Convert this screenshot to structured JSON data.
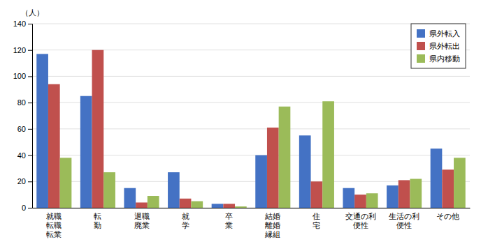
{
  "chart_data": {
    "type": "bar",
    "ylabel": "（人）",
    "categories": [
      "就職\n転職\n転業",
      "転\n勤",
      "退職\n廃業",
      "就\n学",
      "卒\n業",
      "結婚\n離婚\n縁組",
      "住\n宅",
      "交通の利\n便性",
      "生活の利\n便性",
      "その他"
    ],
    "series": [
      {
        "name": "県外転入",
        "color": "#4472C4",
        "values": [
          117,
          85,
          15,
          27,
          3,
          40,
          55,
          15,
          17,
          45
        ]
      },
      {
        "name": "県外転出",
        "color": "#C0504D",
        "values": [
          94,
          120,
          4,
          7,
          3,
          61,
          20,
          10,
          21,
          29
        ]
      },
      {
        "name": "県内移動",
        "color": "#9BBB59",
        "values": [
          38,
          27,
          9,
          5,
          1,
          77,
          81,
          11,
          22,
          38
        ]
      }
    ],
    "ylim": [
      0,
      140
    ],
    "yticks": [
      0,
      20,
      40,
      60,
      80,
      100,
      120,
      140
    ],
    "grid": true,
    "legend": "upper right"
  }
}
